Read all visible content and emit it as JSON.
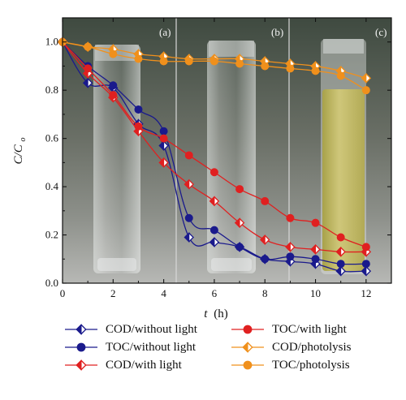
{
  "chart_data": {
    "type": "line",
    "xlabel": "t",
    "xunit": "(h)",
    "ylabel": "C/C",
    "ylabel_sub": "o",
    "xlim": [
      0,
      13
    ],
    "ylim": [
      0,
      1.1
    ],
    "xticks": [
      0,
      2,
      4,
      6,
      8,
      10,
      12
    ],
    "yticks": [
      0.0,
      0.2,
      0.4,
      0.6,
      0.8,
      1.0
    ],
    "ytick_labels": [
      "0.0",
      "0.2",
      "0.4",
      "0.6",
      "0.8",
      "1.0"
    ],
    "panels": [
      "(a)",
      "(b)",
      "(c)"
    ],
    "legend_position": "bottom",
    "series": [
      {
        "name": "COD/without light",
        "color": "#1a1a8c",
        "marker": "diamond-half",
        "x": [
          0,
          1,
          2,
          3,
          4,
          5,
          6,
          7,
          8,
          9,
          10,
          11,
          12
        ],
        "y": [
          1.0,
          0.83,
          0.81,
          0.66,
          0.57,
          0.19,
          0.17,
          0.15,
          0.1,
          0.09,
          0.08,
          0.05,
          0.05
        ]
      },
      {
        "name": "TOC/without light",
        "color": "#1a1a8c",
        "marker": "circle",
        "x": [
          0,
          1,
          2,
          3,
          4,
          5,
          6,
          7,
          8,
          9,
          10,
          11,
          12
        ],
        "y": [
          1.0,
          0.9,
          0.82,
          0.72,
          0.63,
          0.27,
          0.22,
          0.15,
          0.1,
          0.11,
          0.1,
          0.08,
          0.08
        ]
      },
      {
        "name": "COD/with light",
        "color": "#e02020",
        "marker": "diamond-half",
        "x": [
          0,
          1,
          2,
          3,
          4,
          5,
          6,
          7,
          8,
          9,
          10,
          11,
          12
        ],
        "y": [
          1.0,
          0.87,
          0.77,
          0.63,
          0.5,
          0.41,
          0.34,
          0.25,
          0.18,
          0.15,
          0.14,
          0.13,
          0.13
        ]
      },
      {
        "name": "TOC/with light",
        "color": "#e02020",
        "marker": "circle",
        "x": [
          0,
          1,
          2,
          3,
          4,
          5,
          6,
          7,
          8,
          9,
          10,
          11,
          12
        ],
        "y": [
          1.0,
          0.89,
          0.78,
          0.65,
          0.6,
          0.53,
          0.46,
          0.39,
          0.34,
          0.27,
          0.25,
          0.19,
          0.15
        ]
      },
      {
        "name": "COD/photolysis",
        "color": "#f0901c",
        "marker": "diamond-half",
        "x": [
          0,
          1,
          2,
          3,
          4,
          5,
          6,
          7,
          8,
          9,
          10,
          11,
          12
        ],
        "y": [
          1.0,
          0.98,
          0.97,
          0.95,
          0.94,
          0.93,
          0.93,
          0.93,
          0.92,
          0.91,
          0.9,
          0.88,
          0.85
        ]
      },
      {
        "name": "TOC/photolysis",
        "color": "#f0901c",
        "marker": "circle",
        "x": [
          0,
          1,
          2,
          3,
          4,
          5,
          6,
          7,
          8,
          9,
          10,
          11,
          12
        ],
        "y": [
          1.0,
          0.98,
          0.95,
          0.93,
          0.92,
          0.92,
          0.92,
          0.91,
          0.9,
          0.89,
          0.88,
          0.86,
          0.8
        ]
      }
    ]
  }
}
